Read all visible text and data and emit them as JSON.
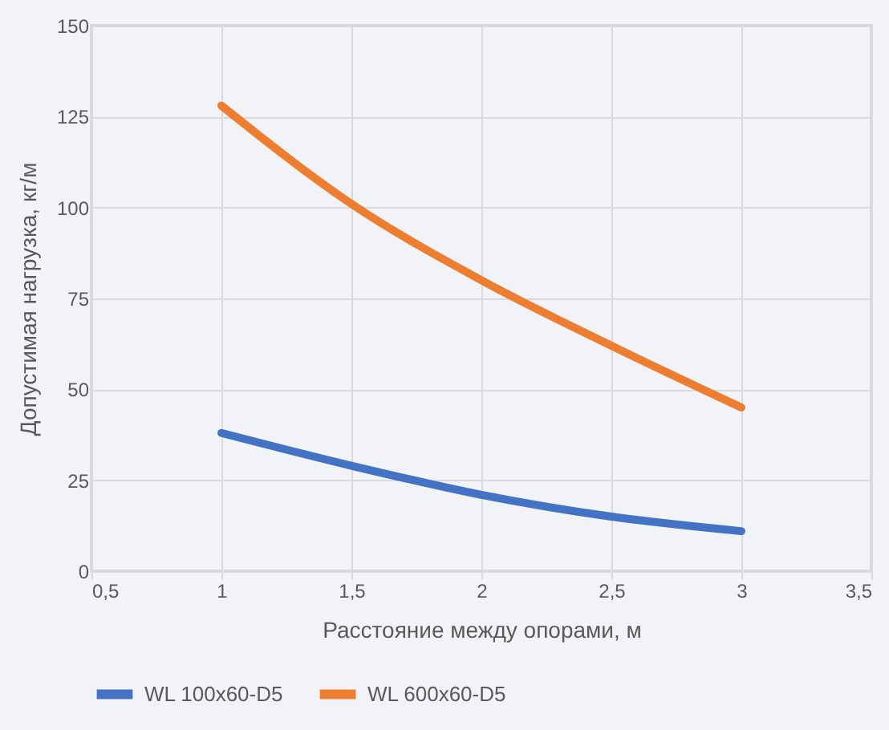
{
  "chart_data": {
    "type": "line",
    "xlabel": "Расстояние между опорами, м",
    "ylabel": "Допустимая нагрузка, кг/м",
    "x": [
      1,
      1.5,
      2,
      2.5,
      3
    ],
    "series": [
      {
        "name": "WL 100x60-D5",
        "color": "#4472c4",
        "values": [
          38,
          29,
          21,
          15,
          11
        ]
      },
      {
        "name": "WL 600x60-D5",
        "color": "#ed7d31",
        "values": [
          128,
          101,
          80,
          62,
          45
        ]
      }
    ],
    "xlim": [
      0.5,
      3.5
    ],
    "xticks": [
      {
        "value": 0.5,
        "label": "0,5"
      },
      1,
      {
        "value": 1.5,
        "label": "1,5"
      },
      2,
      {
        "value": 2.5,
        "label": "2,5"
      },
      3,
      {
        "value": 3.5,
        "label": "3,5"
      }
    ],
    "ylim": [
      0,
      150
    ],
    "yticks": [
      0,
      25,
      50,
      75,
      100,
      125,
      150
    ],
    "grid": true,
    "legend": "bottom",
    "marker": "none",
    "line_style": "solid"
  }
}
